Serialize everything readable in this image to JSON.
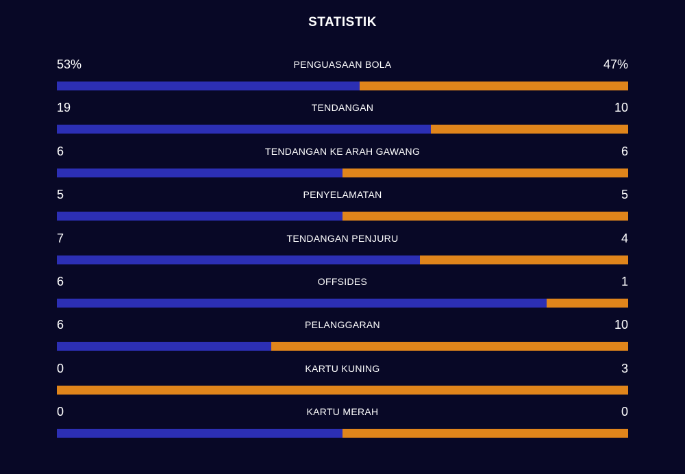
{
  "panel": {
    "title": "STATISTIK"
  },
  "colors": {
    "background": "#080826",
    "home": "#2c2fb4",
    "away": "#e0851b"
  },
  "stats": [
    {
      "label": "PENGUASAAN BOLA",
      "home": "53%",
      "away": "47%",
      "home_share": 0.53
    },
    {
      "label": "TENDANGAN",
      "home": "19",
      "away": "10",
      "home_share": 0.655
    },
    {
      "label": "TENDANGAN KE ARAH GAWANG",
      "home": "6",
      "away": "6",
      "home_share": 0.5
    },
    {
      "label": "PENYELAMATAN",
      "home": "5",
      "away": "5",
      "home_share": 0.5
    },
    {
      "label": "TENDANGAN PENJURU",
      "home": "7",
      "away": "4",
      "home_share": 0.636
    },
    {
      "label": "OFFSIDES",
      "home": "6",
      "away": "1",
      "home_share": 0.857
    },
    {
      "label": "PELANGGARAN",
      "home": "6",
      "away": "10",
      "home_share": 0.375
    },
    {
      "label": "KARTU KUNING",
      "home": "0",
      "away": "3",
      "home_share": 0
    },
    {
      "label": "KARTU MERAH",
      "home": "0",
      "away": "0",
      "home_share": 0.5
    }
  ]
}
